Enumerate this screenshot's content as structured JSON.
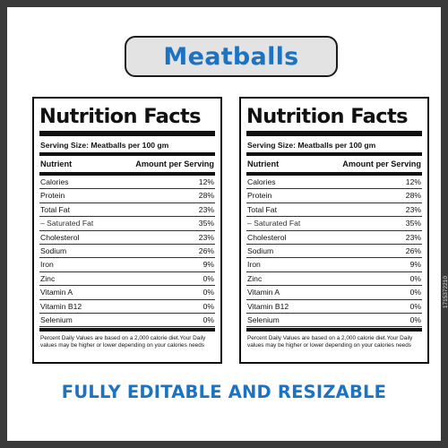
{
  "header": {
    "title": "Meatballs"
  },
  "labels": [
    {
      "heading": "Nutrition Facts",
      "serving": "Serving Size: Meatballs per 100 gm",
      "col_nutrient": "Nutrient",
      "col_amount": "Amount per Serving",
      "rows": [
        {
          "name": "Calories",
          "value": "12%"
        },
        {
          "name": "Protein",
          "value": "28%"
        },
        {
          "name": "Total Fat",
          "value": "23%"
        },
        {
          "name": "– Saturated Fat",
          "value": "35%"
        },
        {
          "name": "Cholesterol",
          "value": "23%"
        },
        {
          "name": "Sodium",
          "value": "26%"
        },
        {
          "name": "Iron",
          "value": "9%"
        },
        {
          "name": "Zinc",
          "value": "0%"
        },
        {
          "name": "Vitamin A",
          "value": "0%"
        },
        {
          "name": "Vitamin B12",
          "value": "0%"
        },
        {
          "name": "Selenium",
          "value": "0%"
        }
      ],
      "footnote": "Percent Daily Values are based on a 2,000 calorie diet.Your Daily values may be higher or lower depending on your calories needs"
    },
    {
      "heading": "Nutrition Facts",
      "serving": "Serving Size: Meatballs per 100 gm",
      "col_nutrient": "Nutrient",
      "col_amount": "Amount per Serving",
      "rows": [
        {
          "name": "Calories",
          "value": "12%"
        },
        {
          "name": "Protein",
          "value": "28%"
        },
        {
          "name": "Total Fat",
          "value": "23%"
        },
        {
          "name": "– Saturated Fat",
          "value": "35%"
        },
        {
          "name": "Cholesterol",
          "value": "23%"
        },
        {
          "name": "Sodium",
          "value": "26%"
        },
        {
          "name": "Iron",
          "value": "9%"
        },
        {
          "name": "Zinc",
          "value": "0%"
        },
        {
          "name": "Vitamin A",
          "value": "0%"
        },
        {
          "name": "Vitamin B12",
          "value": "0%"
        },
        {
          "name": "Selenium",
          "value": "0%"
        }
      ],
      "footnote": "Percent Daily Values are based on a 2,000 calorie diet.Your Daily values may be higher or lower depending on your calories needs"
    }
  ],
  "footer": {
    "tagline": "FULLY EDITABLE AND RESIZABLE"
  },
  "watermark": {
    "id": "1715372210"
  },
  "colors": {
    "accent": "#1c73c2",
    "pill": "#e3e3e3",
    "frame": "#3a3a3a"
  }
}
